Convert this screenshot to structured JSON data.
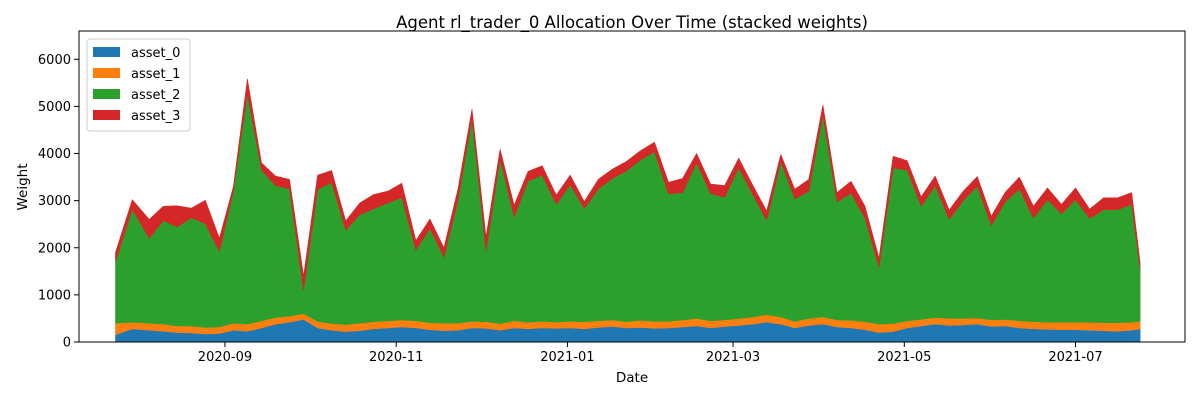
{
  "chart_data": {
    "type": "area",
    "stacked": true,
    "title": "Agent rl_trader_0 Allocation Over Time (stacked weights)",
    "xlabel": "Date",
    "ylabel": "Weight",
    "xlim": [
      "2020-07-11",
      "2021-08-09"
    ],
    "ylim": [
      0,
      6600
    ],
    "x_ticks": [
      {
        "date": "2020-09-01",
        "label": "2020-09"
      },
      {
        "date": "2020-11-01",
        "label": "2020-11"
      },
      {
        "date": "2021-01-01",
        "label": "2021-01"
      },
      {
        "date": "2021-03-01",
        "label": "2021-03"
      },
      {
        "date": "2021-05-01",
        "label": "2021-05"
      },
      {
        "date": "2021-07-01",
        "label": "2021-07"
      }
    ],
    "y_ticks": [
      0,
      1000,
      2000,
      3000,
      4000,
      5000,
      6000
    ],
    "legend_position": "top-left",
    "grid": false,
    "x": [
      "2020-07-24",
      "2020-07-30",
      "2020-08-05",
      "2020-08-10",
      "2020-08-15",
      "2020-08-20",
      "2020-08-25",
      "2020-08-30",
      "2020-09-04",
      "2020-09-09",
      "2020-09-14",
      "2020-09-19",
      "2020-09-24",
      "2020-09-29",
      "2020-10-04",
      "2020-10-09",
      "2020-10-14",
      "2020-10-19",
      "2020-10-24",
      "2020-10-29",
      "2020-11-03",
      "2020-11-08",
      "2020-11-13",
      "2020-11-18",
      "2020-11-23",
      "2020-11-28",
      "2020-12-03",
      "2020-12-08",
      "2020-12-13",
      "2020-12-18",
      "2020-12-23",
      "2020-12-28",
      "2021-01-02",
      "2021-01-07",
      "2021-01-12",
      "2021-01-17",
      "2021-01-22",
      "2021-01-27",
      "2021-02-01",
      "2021-02-06",
      "2021-02-11",
      "2021-02-16",
      "2021-02-21",
      "2021-02-26",
      "2021-03-03",
      "2021-03-08",
      "2021-03-13",
      "2021-03-18",
      "2021-03-23",
      "2021-03-28",
      "2021-04-02",
      "2021-04-07",
      "2021-04-12",
      "2021-04-17",
      "2021-04-22",
      "2021-04-27",
      "2021-05-02",
      "2021-05-07",
      "2021-05-12",
      "2021-05-17",
      "2021-05-22",
      "2021-05-27",
      "2021-06-01",
      "2021-06-06",
      "2021-06-11",
      "2021-06-16",
      "2021-06-21",
      "2021-06-26",
      "2021-07-01",
      "2021-07-06",
      "2021-07-11",
      "2021-07-16",
      "2021-07-21",
      "2021-07-24"
    ],
    "series": [
      {
        "name": "asset_0",
        "color": "#1f77b4",
        "values": [
          150,
          280,
          250,
          230,
          200,
          190,
          170,
          180,
          250,
          230,
          300,
          380,
          420,
          480,
          300,
          250,
          220,
          240,
          280,
          300,
          320,
          300,
          260,
          240,
          250,
          300,
          290,
          250,
          300,
          280,
          300,
          290,
          300,
          280,
          310,
          330,
          300,
          310,
          290,
          300,
          320,
          340,
          300,
          330,
          350,
          380,
          420,
          380,
          300,
          350,
          380,
          320,
          300,
          260,
          200,
          220,
          300,
          340,
          380,
          350,
          360,
          380,
          330,
          340,
          300,
          280,
          270,
          260,
          260,
          250,
          240,
          230,
          250,
          280
        ]
      },
      {
        "name": "asset_1",
        "color": "#ff7f0e",
        "values": [
          250,
          140,
          150,
          150,
          140,
          150,
          140,
          140,
          150,
          150,
          150,
          140,
          130,
          120,
          140,
          140,
          150,
          160,
          150,
          150,
          150,
          150,
          150,
          160,
          150,
          140,
          140,
          140,
          150,
          140,
          140,
          130,
          140,
          150,
          140,
          140,
          130,
          150,
          150,
          140,
          150,
          160,
          150,
          140,
          150,
          150,
          160,
          150,
          140,
          150,
          150,
          150,
          160,
          170,
          180,
          170,
          150,
          140,
          140,
          150,
          140,
          130,
          140,
          140,
          150,
          150,
          150,
          160,
          160,
          170,
          170,
          180,
          170,
          160
        ]
      },
      {
        "name": "asset_2",
        "color": "#2ca02c",
        "values": [
          1300,
          2400,
          1800,
          2200,
          2100,
          2300,
          2200,
          1600,
          2800,
          4900,
          3200,
          2800,
          2700,
          500,
          2800,
          3000,
          2000,
          2300,
          2400,
          2500,
          2600,
          1500,
          2000,
          1400,
          2600,
          4300,
          1500,
          3500,
          2200,
          3000,
          3100,
          2500,
          2900,
          2400,
          2800,
          3000,
          3200,
          3400,
          3600,
          2700,
          2700,
          3300,
          2700,
          2600,
          3200,
          2600,
          2000,
          3300,
          2600,
          2700,
          4300,
          2500,
          2700,
          2200,
          1200,
          3300,
          3200,
          2400,
          2800,
          2100,
          2500,
          2800,
          2000,
          2500,
          2800,
          2200,
          2600,
          2300,
          2600,
          2200,
          2400,
          2400,
          2500,
          1100
        ]
      },
      {
        "name": "asset_3",
        "color": "#d62728",
        "values": [
          200,
          200,
          400,
          300,
          450,
          200,
          500,
          280,
          100,
          300,
          150,
          200,
          200,
          300,
          300,
          250,
          200,
          250,
          300,
          250,
          300,
          200,
          200,
          200,
          250,
          200,
          300,
          200,
          250,
          200,
          200,
          200,
          200,
          150,
          200,
          200,
          200,
          200,
          200,
          250,
          300,
          200,
          200,
          250,
          200,
          200,
          200,
          150,
          200,
          250,
          200,
          200,
          250,
          250,
          200,
          250,
          200,
          200,
          200,
          200,
          200,
          200,
          200,
          200,
          250,
          250,
          250,
          200,
          250,
          200,
          250,
          250,
          250,
          150
        ]
      }
    ]
  }
}
